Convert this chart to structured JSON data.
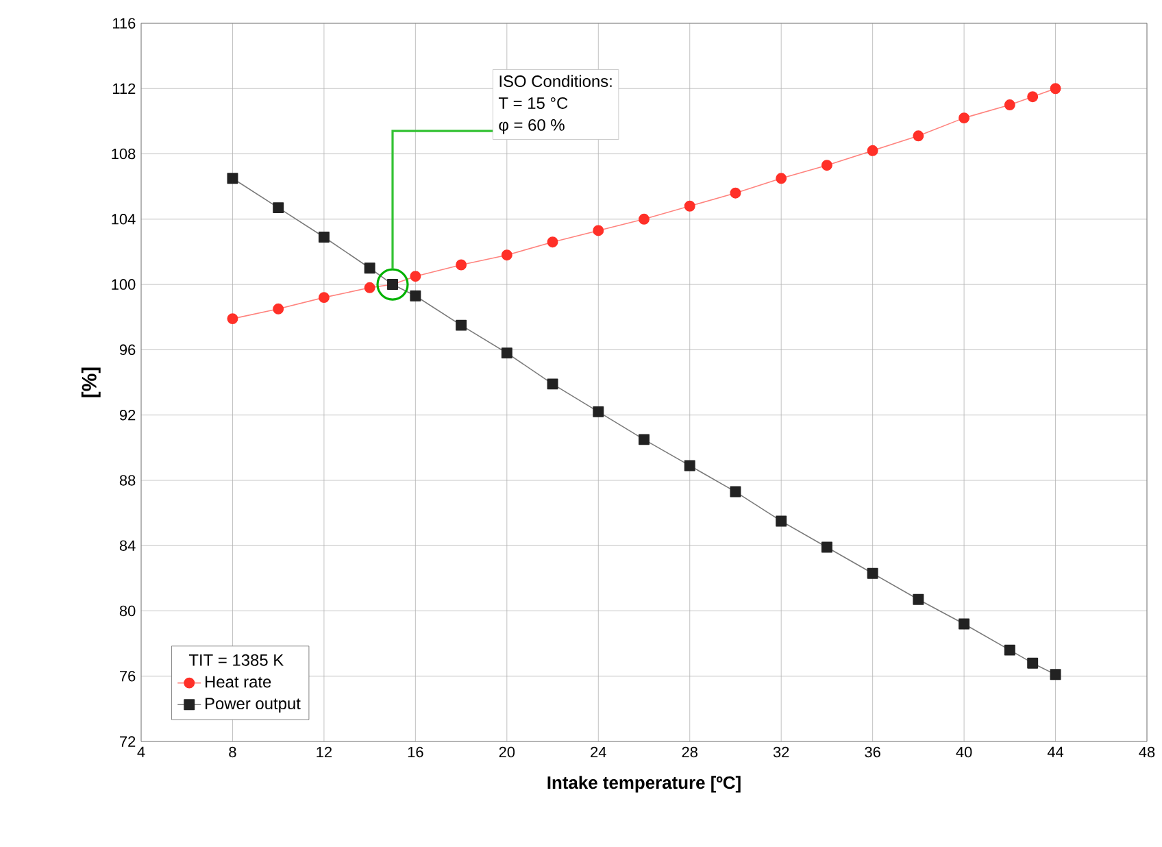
{
  "chart_data": {
    "type": "line",
    "xlabel": "Intake temperature [ºC]",
    "ylabel": "[%]",
    "legend_title": "TIT = 1385 K",
    "x": [
      8,
      10,
      12,
      14,
      15,
      16,
      18,
      20,
      22,
      24,
      26,
      28,
      30,
      32,
      34,
      36,
      38,
      40,
      42,
      43,
      44
    ],
    "series": [
      {
        "name": "Heat rate",
        "color": "#ff3028",
        "marker": "circle",
        "values": [
          97.9,
          98.5,
          99.2,
          99.8,
          100,
          100.5,
          101.2,
          101.8,
          102.6,
          103.3,
          104.0,
          104.8,
          105.6,
          106.5,
          107.3,
          108.2,
          109.1,
          110.2,
          111.0,
          111.5,
          112.0
        ]
      },
      {
        "name": "Power output",
        "color": "#222222",
        "marker": "square",
        "values": [
          106.5,
          104.7,
          102.9,
          101.0,
          100,
          99.3,
          97.5,
          95.8,
          93.9,
          92.2,
          90.5,
          88.9,
          87.3,
          85.5,
          83.9,
          82.3,
          80.7,
          79.2,
          77.6,
          76.8,
          76.1
        ]
      }
    ],
    "xlim": [
      4,
      48
    ],
    "xticks": [
      4,
      8,
      12,
      16,
      20,
      24,
      28,
      32,
      36,
      40,
      44,
      48
    ],
    "ylim": [
      72,
      116
    ],
    "yticks": [
      72,
      76,
      80,
      84,
      88,
      92,
      96,
      100,
      104,
      108,
      112,
      116
    ],
    "grid": true,
    "legend": "bottom left",
    "line_style": "solid",
    "annotations": [
      "ISO Conditions:",
      "T = 15 °C",
      "φ = 60 %"
    ]
  }
}
